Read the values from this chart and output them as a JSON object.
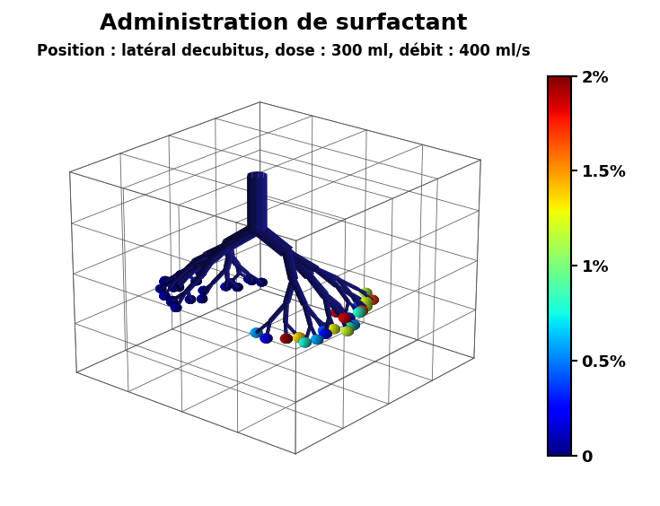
{
  "title": "Administration de surfactant",
  "subtitle": "Position : latéral decubitus, dose : 300 ml, débit : 400 ml/s",
  "title_fontsize": 18,
  "subtitle_fontsize": 12,
  "title_fontweight": "bold",
  "subtitle_fontweight": "bold",
  "colorbar_ticks": [
    0,
    0.5,
    1.0,
    1.5,
    2.0
  ],
  "colorbar_ticklabels": [
    "0",
    "0.5%",
    "1%",
    "1.5%",
    "2%"
  ],
  "background_color": "#ffffff",
  "bronchi_color": "#1a1a8c",
  "arrow_color": "#ff0000",
  "vmin": 0,
  "vmax": 2.0,
  "elev": 22,
  "azim": -50
}
